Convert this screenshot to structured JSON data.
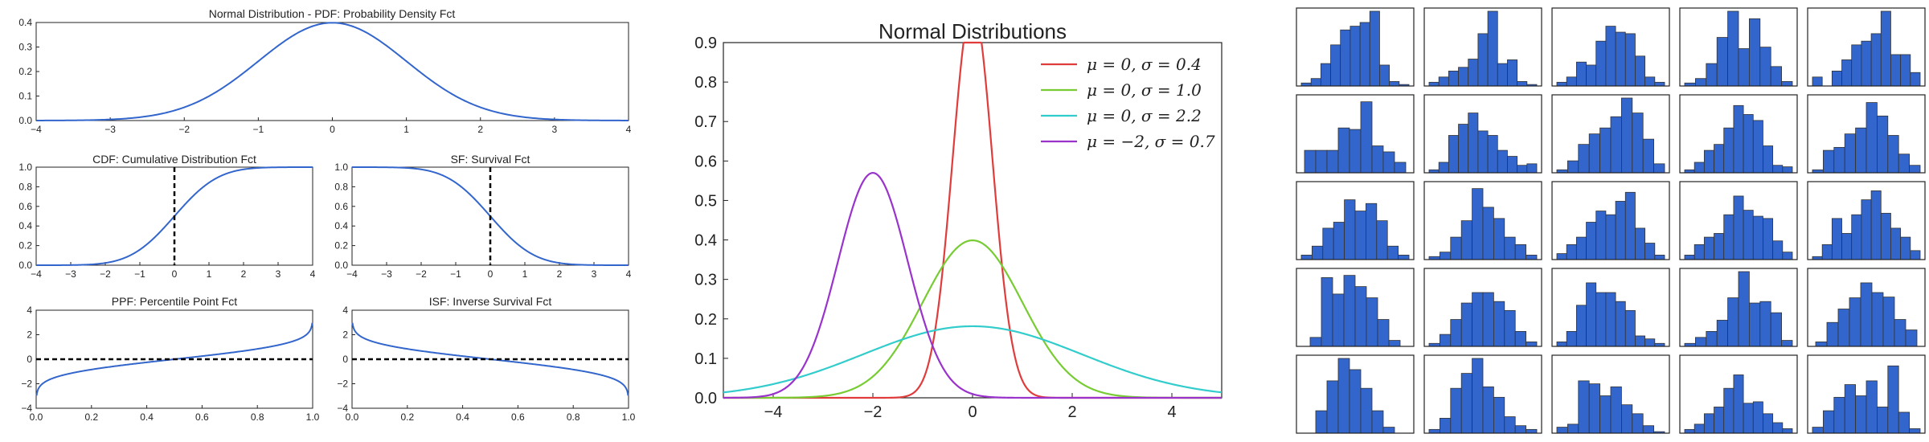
{
  "chart_data": [
    {
      "type": "line",
      "title": "Normal Distribution - PDF: Probability Density Fct",
      "function": "pdf",
      "xlim": [
        -4,
        4
      ],
      "ylim": [
        0,
        0.4
      ],
      "xticks": [
        -4,
        -3,
        -2,
        -1,
        0,
        1,
        2,
        3,
        4
      ],
      "yticks": [
        0.0,
        0.1,
        0.2,
        0.3,
        0.4
      ],
      "ytick_labels": [
        "0.0",
        "0.1",
        "0.2",
        "0.3",
        "0.4"
      ],
      "color": "#3366cc"
    },
    {
      "type": "line",
      "title": "CDF: Cumulative Distribution Fct",
      "function": "cdf",
      "xlim": [
        -4,
        4
      ],
      "ylim": [
        0,
        1
      ],
      "xticks": [
        -4,
        -3,
        -2,
        -1,
        0,
        1,
        2,
        3,
        4
      ],
      "yticks": [
        0.0,
        0.2,
        0.4,
        0.6,
        0.8,
        1.0
      ],
      "ytick_labels": [
        "0.0",
        "0.2",
        "0.4",
        "0.6",
        "0.8",
        "1.0"
      ],
      "reference_line": {
        "axis": "x",
        "value": 0,
        "style": "dashed"
      },
      "color": "#3366cc"
    },
    {
      "type": "line",
      "title": "SF: Survival Fct",
      "function": "sf",
      "xlim": [
        -4,
        4
      ],
      "ylim": [
        0,
        1
      ],
      "xticks": [
        -4,
        -3,
        -2,
        -1,
        0,
        1,
        2,
        3,
        4
      ],
      "yticks": [
        0.0,
        0.2,
        0.4,
        0.6,
        0.8,
        1.0
      ],
      "ytick_labels": [
        "0.0",
        "0.2",
        "0.4",
        "0.6",
        "0.8",
        "1.0"
      ],
      "reference_line": {
        "axis": "x",
        "value": 0,
        "style": "dashed"
      },
      "color": "#3366cc"
    },
    {
      "type": "line",
      "title": "PPF: Percentile Point Fct",
      "function": "ppf",
      "xlim": [
        0,
        1
      ],
      "ylim": [
        -4,
        4
      ],
      "xticks": [
        0.0,
        0.2,
        0.4,
        0.6,
        0.8,
        1.0
      ],
      "xtick_labels": [
        "0.0",
        "0.2",
        "0.4",
        "0.6",
        "0.8",
        "1.0"
      ],
      "yticks": [
        -4,
        -2,
        0,
        2,
        4
      ],
      "ytick_labels": [
        "−4",
        "−2",
        "0",
        "2",
        "4"
      ],
      "reference_line": {
        "axis": "y",
        "value": 0,
        "style": "dashed"
      },
      "color": "#3366cc"
    },
    {
      "type": "line",
      "title": "ISF: Inverse Survival Fct",
      "function": "isf",
      "xlim": [
        0,
        1
      ],
      "ylim": [
        -4,
        4
      ],
      "xticks": [
        0.0,
        0.2,
        0.4,
        0.6,
        0.8,
        1.0
      ],
      "xtick_labels": [
        "0.0",
        "0.2",
        "0.4",
        "0.6",
        "0.8",
        "1.0"
      ],
      "yticks": [
        -4,
        -2,
        0,
        2,
        4
      ],
      "ytick_labels": [
        "−4",
        "−2",
        "0",
        "2",
        "4"
      ],
      "reference_line": {
        "axis": "y",
        "value": 0,
        "style": "dashed"
      },
      "color": "#3366cc"
    },
    {
      "type": "line",
      "title": "Normal Distributions",
      "xlim": [
        -5,
        5
      ],
      "ylim": [
        0,
        0.9
      ],
      "xticks": [
        -4,
        -2,
        0,
        2,
        4
      ],
      "xtick_labels": [
        "−4",
        "−2",
        "0",
        "2",
        "4"
      ],
      "yticks": [
        0.0,
        0.1,
        0.2,
        0.3,
        0.4,
        0.5,
        0.6,
        0.7,
        0.8,
        0.9
      ],
      "ytick_labels": [
        "0.0",
        "0.1",
        "0.2",
        "0.3",
        "0.4",
        "0.5",
        "0.6",
        "0.7",
        "0.8",
        "0.9"
      ],
      "legend_position": "top-right",
      "series": [
        {
          "name": "μ = 0,  σ = 0.4",
          "mu": 0,
          "sigma": 0.4,
          "color": "#e03c3c"
        },
        {
          "name": "μ = 0,  σ = 1.0",
          "mu": 0,
          "sigma": 1.0,
          "color": "#77cc33"
        },
        {
          "name": "μ = 0,  σ = 2.2",
          "mu": 0,
          "sigma": 2.2,
          "color": "#33cccc"
        },
        {
          "name": "μ = −2,  σ = 0.7",
          "mu": -2,
          "sigma": 0.7,
          "color": "#9933cc"
        }
      ]
    },
    {
      "type": "bar",
      "subtype": "histogram-grid",
      "rows": 5,
      "cols": 5,
      "bar_color": "#3366cc",
      "edge_color": "#333333",
      "histograms": [
        [
          0.04,
          0.1,
          0.3,
          0.55,
          0.75,
          0.8,
          0.85,
          1.0,
          0.28,
          0.06,
          0.02
        ],
        [
          0.05,
          0.12,
          0.2,
          0.25,
          0.36,
          0.7,
          1.0,
          0.3,
          0.35,
          0.06,
          0.02
        ],
        [
          0.05,
          0.12,
          0.32,
          0.28,
          0.6,
          0.8,
          0.72,
          0.7,
          0.4,
          0.12,
          0.05
        ],
        [
          0.04,
          0.1,
          0.3,
          0.65,
          1.0,
          0.5,
          0.9,
          0.52,
          0.26,
          0.06
        ],
        [
          0.12,
          0.0,
          0.2,
          0.35,
          0.55,
          0.6,
          0.7,
          1.0,
          0.42,
          0.42,
          0.18
        ],
        [
          0.3,
          0.3,
          0.3,
          0.6,
          0.58,
          0.95,
          0.36,
          0.28,
          0.14
        ],
        [
          0.04,
          0.14,
          0.5,
          0.65,
          0.8,
          0.56,
          0.5,
          0.3,
          0.22,
          0.1,
          0.12
        ],
        [
          0.04,
          0.16,
          0.38,
          0.52,
          0.6,
          0.75,
          1.0,
          0.8,
          0.45,
          0.12
        ],
        [
          0.04,
          0.14,
          0.3,
          0.38,
          0.6,
          0.9,
          0.78,
          0.7,
          0.36,
          0.1,
          0.08
        ],
        [
          0.04,
          0.3,
          0.34,
          0.52,
          0.6,
          0.94,
          0.76,
          0.5,
          0.25,
          0.1
        ],
        [
          0.06,
          0.18,
          0.42,
          0.5,
          0.8,
          0.65,
          0.75,
          0.52,
          0.18,
          0.06
        ],
        [
          0.04,
          0.1,
          0.3,
          0.52,
          0.95,
          0.7,
          0.55,
          0.3,
          0.2,
          0.06
        ],
        [
          0.08,
          0.2,
          0.3,
          0.5,
          0.65,
          0.6,
          0.78,
          0.9,
          0.42,
          0.22,
          0.06
        ],
        [
          0.06,
          0.2,
          0.3,
          0.35,
          0.6,
          0.85,
          0.66,
          0.58,
          0.55,
          0.25,
          0.1
        ],
        [
          0.04,
          0.2,
          0.55,
          0.35,
          0.6,
          0.8,
          0.92,
          0.62,
          0.42,
          0.3,
          0.12
        ],
        [
          0.12,
          0.92,
          0.7,
          0.95,
          0.8,
          0.65,
          0.36,
          0.08
        ],
        [
          0.04,
          0.16,
          0.36,
          0.58,
          0.72,
          0.72,
          0.6,
          0.48,
          0.2,
          0.06
        ],
        [
          0.06,
          0.2,
          0.55,
          0.85,
          0.72,
          0.72,
          0.6,
          0.48,
          0.14,
          0.1,
          0.04
        ],
        [
          0.04,
          0.12,
          0.2,
          0.35,
          0.65,
          1.0,
          0.58,
          0.6,
          0.45,
          0.08
        ],
        [
          0.06,
          0.32,
          0.5,
          0.65,
          0.85,
          0.72,
          0.66,
          0.36,
          0.22
        ],
        [
          0.3,
          0.7,
          1.0,
          0.85,
          0.6,
          0.3,
          0.08
        ],
        [
          0.05,
          0.2,
          0.6,
          0.8,
          1.0,
          0.62,
          0.48,
          0.22,
          0.1,
          0.05
        ],
        [
          0.08,
          0.12,
          0.7,
          0.66,
          0.5,
          0.62,
          0.38,
          0.26,
          0.1,
          0.02
        ],
        [
          0.05,
          0.12,
          0.26,
          0.35,
          0.6,
          0.78,
          0.4,
          0.42,
          0.26,
          0.14,
          0.06
        ],
        [
          0.08,
          0.3,
          0.48,
          0.65,
          0.5,
          0.7,
          0.35,
          0.9,
          0.28,
          0.06
        ]
      ]
    }
  ]
}
